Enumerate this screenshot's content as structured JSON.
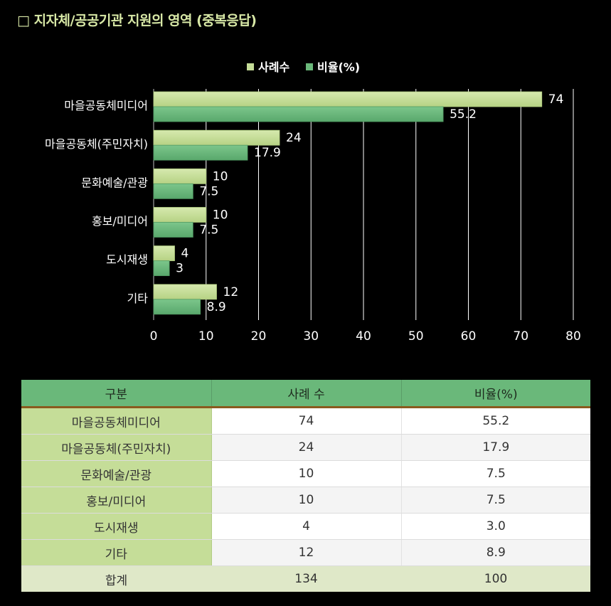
{
  "title": "□ 지자체/공공기관 지원의 영역 (중복응답)",
  "colors": {
    "cases": "#c5dd98",
    "cases_dark": "#aecb7d",
    "ratio": "#6ab87a",
    "ratio_dark": "#4f9a62",
    "grid": "#ffffff",
    "header_bg": "#6ab87a",
    "label_col_bg": "#c5dd98",
    "total_bg": "#dfe8c8"
  },
  "chart_data": {
    "type": "bar",
    "orientation": "horizontal",
    "title": "",
    "xlabel": "",
    "ylabel": "",
    "categories": [
      "마을공동체미디어",
      "마을공동체(주민자치)",
      "문화예술/관광",
      "홍보/미디어",
      "도시재생",
      "기타"
    ],
    "series": [
      {
        "name": "사례수",
        "values": [
          74,
          24,
          10,
          10,
          4,
          12
        ],
        "labels": [
          "74",
          "24",
          "10",
          "10",
          "4",
          "12"
        ]
      },
      {
        "name": "비율(%)",
        "values": [
          55.2,
          17.9,
          7.5,
          7.5,
          3,
          8.9
        ],
        "labels": [
          "55.2",
          "17.9",
          "7.5",
          "7.5",
          "3",
          "8.9"
        ]
      }
    ],
    "xlim": [
      0,
      80
    ],
    "xticks": [
      0,
      10,
      20,
      30,
      40,
      50,
      60,
      70,
      80
    ],
    "grid": true,
    "legend_position": "top-center"
  },
  "table": {
    "headers": [
      "구분",
      "사례 수",
      "비율(%)"
    ],
    "rows": [
      {
        "label": "마을공동체미디어",
        "cases": "74",
        "ratio": "55.2"
      },
      {
        "label": "마을공동체(주민자치)",
        "cases": "24",
        "ratio": "17.9"
      },
      {
        "label": "문화예술/관광",
        "cases": "10",
        "ratio": "7.5"
      },
      {
        "label": "홍보/미디어",
        "cases": "10",
        "ratio": "7.5"
      },
      {
        "label": "도시재생",
        "cases": "4",
        "ratio": "3.0"
      },
      {
        "label": "기타",
        "cases": "12",
        "ratio": "8.9"
      }
    ],
    "total": {
      "label": "합계",
      "cases": "134",
      "ratio": "100"
    }
  }
}
